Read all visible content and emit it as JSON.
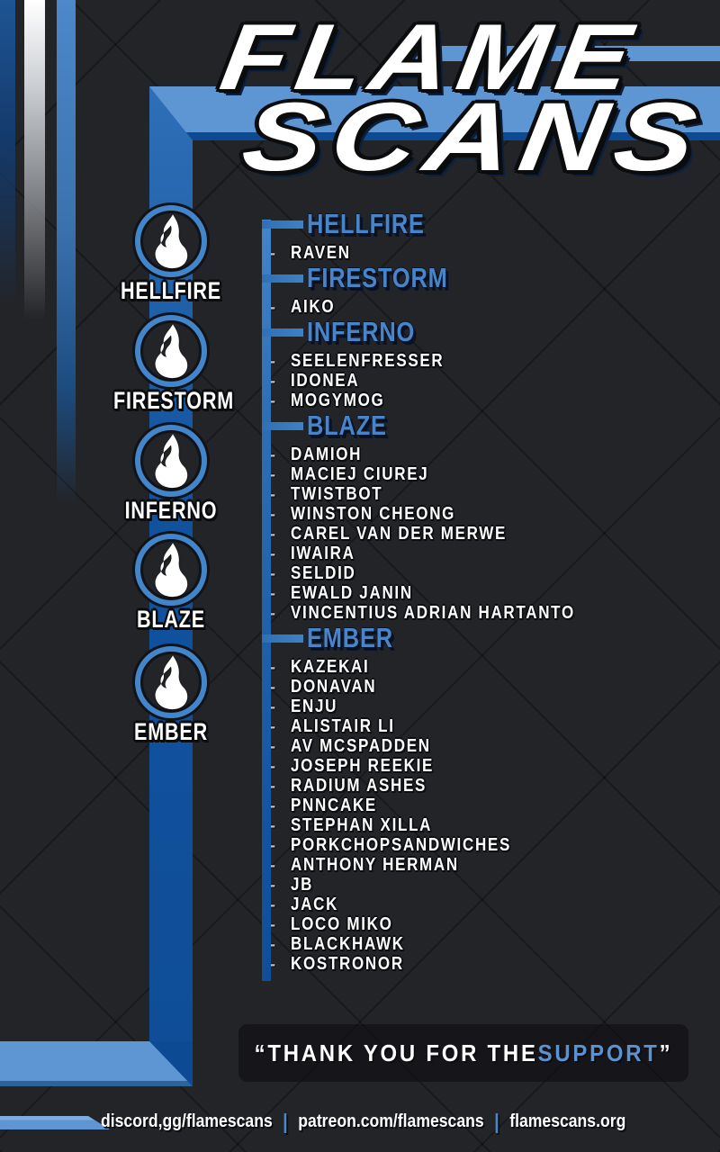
{
  "title": {
    "line1": "FLAME",
    "line2": "SCANS"
  },
  "sidebar": {
    "icon": "flame-icon",
    "tiers": [
      {
        "label": "HELLFIRE"
      },
      {
        "label": "FIRESTORM"
      },
      {
        "label": "INFERNO"
      },
      {
        "label": "BLAZE"
      },
      {
        "label": "EMBER"
      }
    ]
  },
  "roster": {
    "bullet": "-",
    "sections": [
      {
        "name": "HELLFIRE",
        "members": [
          "RAVEN"
        ]
      },
      {
        "name": "FIRESTORM",
        "members": [
          "AIKO"
        ]
      },
      {
        "name": "INFERNO",
        "members": [
          "SEELENFRESSER",
          "IDONEA",
          "MOGYMOG"
        ]
      },
      {
        "name": "BLAZE",
        "members": [
          "DAMIOH",
          "MACIEJ CIUREJ",
          "TWISTBOT",
          "WINSTON CHEONG",
          "CAREL VAN DER MERWE",
          "IWAIRA",
          "SELDID",
          "EWALD JANIN",
          "VINCENTIUS ADRIAN HARTANTO"
        ]
      },
      {
        "name": "EMBER",
        "members": [
          "KAZEKAI",
          "DONAVAN",
          "ENJU",
          "ALISTAIR LI",
          "AV MCSPADDEN",
          "JOSEPH REEKIE",
          "RADIUM ASHES",
          "PNNCAKE",
          "STEPHAN XILLA",
          "PORKCHOPSANDWICHES",
          "ANTHONY HERMAN",
          "JB",
          "JACK",
          "LOCO MIKO",
          "BLACKHAWK",
          "KOSTRONOR"
        ]
      }
    ]
  },
  "thanks": {
    "prefix": "“THANK YOU FOR THE ",
    "highlight": "SUPPORT",
    "suffix": "”"
  },
  "footer": {
    "separator": "|",
    "links": [
      "discord,gg/flamescans",
      "patreon.com/flamescans",
      "flamescans.org"
    ]
  },
  "colors": {
    "background": "#232428",
    "accent_light_blue": "#5e95d3",
    "accent_dark_blue": "#0d4a94",
    "header_blue": "#4a84c8",
    "ring_blue": "#4285ca"
  }
}
